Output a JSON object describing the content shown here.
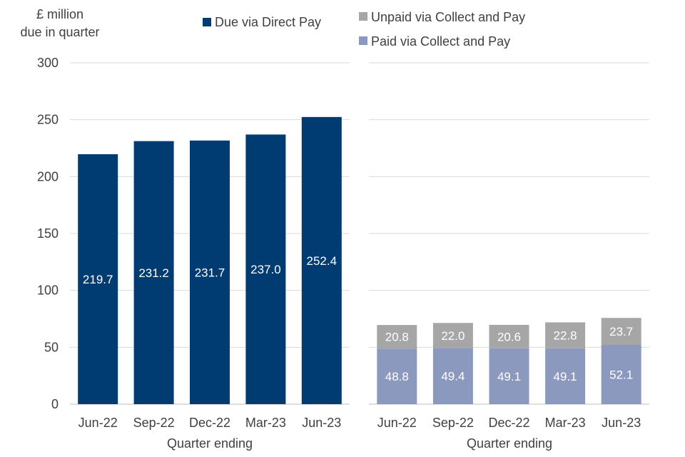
{
  "colors": {
    "direct_pay": "#003c71",
    "unpaid_cp": "#a6a6a6",
    "paid_cp": "#8c99bf",
    "grid": "#d9d9d9",
    "axis": "#bfbfbf",
    "text": "#404040",
    "label": "#ffffff"
  },
  "yaxis": {
    "title_line1": "£ million",
    "title_line2": "due in quarter"
  },
  "legend": {
    "direct_pay": "Due via Direct Pay",
    "unpaid_cp": "Unpaid via Collect and Pay",
    "paid_cp": "Paid via Collect and Pay"
  },
  "chart_data": [
    {
      "type": "bar",
      "title": "",
      "xlabel": "Quarter ending",
      "ylabel": "£ million due in quarter",
      "ylim": [
        0,
        300
      ],
      "yticks": [
        0,
        50,
        100,
        150,
        200,
        250,
        300
      ],
      "categories": [
        "Jun-22",
        "Sep-22",
        "Dec-22",
        "Mar-23",
        "Jun-23"
      ],
      "series": [
        {
          "name": "Due via Direct Pay",
          "values": [
            219.7,
            231.2,
            231.7,
            237.0,
            252.4
          ],
          "labels": [
            "219.7",
            "231.2",
            "231.7",
            "237.0",
            "252.4"
          ]
        }
      ]
    },
    {
      "type": "bar",
      "stacked": true,
      "title": "",
      "xlabel": "Quarter ending",
      "ylabel": "",
      "ylim": [
        0,
        300
      ],
      "categories": [
        "Jun-22",
        "Sep-22",
        "Dec-22",
        "Mar-23",
        "Jun-23"
      ],
      "series": [
        {
          "name": "Paid via Collect and Pay",
          "values": [
            48.8,
            49.4,
            49.1,
            49.1,
            52.1
          ],
          "labels": [
            "48.8",
            "49.4",
            "49.1",
            "49.1",
            "52.1"
          ]
        },
        {
          "name": "Unpaid via Collect and Pay",
          "values": [
            20.8,
            22.0,
            20.6,
            22.8,
            23.7
          ],
          "labels": [
            "20.8",
            "22.0",
            "20.6",
            "22.8",
            "23.7"
          ]
        }
      ]
    }
  ]
}
